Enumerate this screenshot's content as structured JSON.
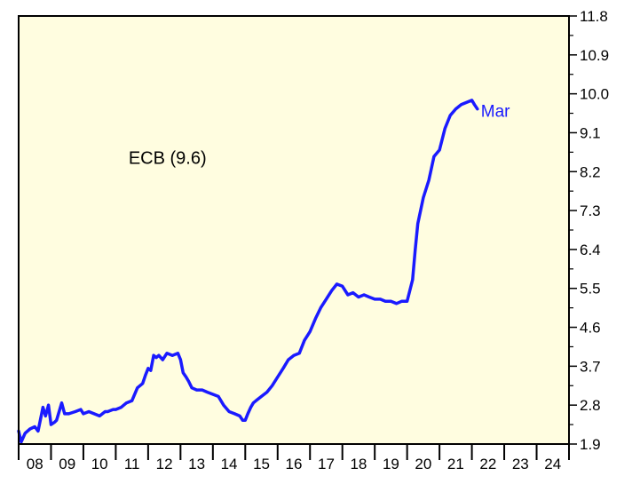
{
  "chart_data": {
    "type": "line",
    "title": "",
    "xlabel": "",
    "ylabel": "",
    "annotation": "ECB (9.6)",
    "end_label": "Mar",
    "background_color": "#fffde0",
    "line_color": "#1a1aff",
    "grid": false,
    "xlim": [
      2008.0,
      2025.0
    ],
    "ylim": [
      1.9,
      11.8
    ],
    "y_ticks": [
      "1.9",
      "2.8",
      "3.7",
      "4.6",
      "5.5",
      "6.4",
      "7.3",
      "8.2",
      "9.1",
      "10.0",
      "10.9",
      "11.8"
    ],
    "x_tick_labels": [
      "08",
      "09",
      "10",
      "11",
      "12",
      "13",
      "14",
      "15",
      "16",
      "17",
      "18",
      "19",
      "20",
      "21",
      "22",
      "23",
      "24"
    ],
    "series": [
      {
        "x": [
          2008.0,
          2008.08,
          2008.2,
          2008.35,
          2008.5,
          2008.6,
          2008.75,
          2008.83,
          2008.92,
          2009.0,
          2009.1,
          2009.17,
          2009.33,
          2009.42,
          2009.55,
          2009.75,
          2009.92,
          2010.0,
          2010.17,
          2010.33,
          2010.5,
          2010.67,
          2010.75,
          2010.92,
          2011.0,
          2011.17,
          2011.33,
          2011.5,
          2011.67,
          2011.83,
          2011.92,
          2012.0,
          2012.08,
          2012.17,
          2012.25,
          2012.33,
          2012.45,
          2012.58,
          2012.75,
          2012.92,
          2013.0,
          2013.08,
          2013.17,
          2013.25,
          2013.35,
          2013.5,
          2013.67,
          2013.83,
          2014.0,
          2014.17,
          2014.33,
          2014.5,
          2014.67,
          2014.83,
          2014.92,
          2015.0,
          2015.08,
          2015.17,
          2015.25,
          2015.33,
          2015.5,
          2015.67,
          2015.83,
          2016.0,
          2016.17,
          2016.33,
          2016.5,
          2016.67,
          2016.83,
          2017.0,
          2017.17,
          2017.33,
          2017.5,
          2017.67,
          2017.83,
          2018.0,
          2018.17,
          2018.33,
          2018.5,
          2018.67,
          2018.83,
          2019.0,
          2019.17,
          2019.33,
          2019.5,
          2019.67,
          2019.83,
          2020.0,
          2020.17,
          2020.25,
          2020.33,
          2020.5,
          2020.67,
          2020.83,
          2021.0,
          2021.17,
          2021.33,
          2021.5,
          2021.67,
          2021.83,
          2022.0,
          2022.08,
          2022.17
        ],
        "values": [
          2.2,
          1.95,
          2.15,
          2.25,
          2.3,
          2.2,
          2.75,
          2.55,
          2.8,
          2.35,
          2.4,
          2.45,
          2.85,
          2.6,
          2.6,
          2.65,
          2.7,
          2.6,
          2.65,
          2.6,
          2.55,
          2.65,
          2.65,
          2.7,
          2.7,
          2.75,
          2.85,
          2.9,
          3.2,
          3.3,
          3.5,
          3.65,
          3.6,
          3.95,
          3.9,
          3.95,
          3.85,
          4.0,
          3.95,
          4.0,
          3.85,
          3.55,
          3.45,
          3.35,
          3.2,
          3.15,
          3.15,
          3.1,
          3.05,
          3.0,
          2.8,
          2.65,
          2.6,
          2.55,
          2.45,
          2.45,
          2.6,
          2.75,
          2.85,
          2.9,
          3.0,
          3.1,
          3.25,
          3.45,
          3.65,
          3.85,
          3.95,
          4.0,
          4.3,
          4.5,
          4.8,
          5.05,
          5.25,
          5.45,
          5.6,
          5.55,
          5.35,
          5.4,
          5.3,
          5.35,
          5.3,
          5.25,
          5.25,
          5.2,
          5.2,
          5.15,
          5.2,
          5.2,
          5.7,
          6.4,
          7.0,
          7.6,
          8.0,
          8.55,
          8.7,
          9.2,
          9.5,
          9.65,
          9.75,
          9.8,
          9.85,
          9.75,
          9.65
        ]
      }
    ]
  }
}
